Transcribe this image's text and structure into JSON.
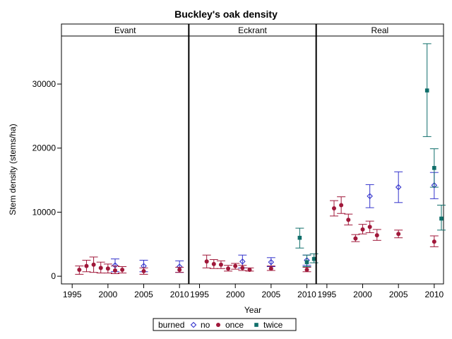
{
  "chart_data": {
    "type": "scatter",
    "title": "Buckley's oak density",
    "xlabel": "Year",
    "ylabel": "Stem density (stems/ha)",
    "panels": [
      "Evant",
      "Eckrant",
      "Real"
    ],
    "xlim": [
      1993.5,
      2011.3
    ],
    "ylim": [
      -1200,
      37500
    ],
    "xticks": [
      1995,
      2000,
      2005,
      2010
    ],
    "yticks": [
      0,
      10000,
      20000,
      30000
    ],
    "xtick_labels": [
      "1995",
      "2000",
      "2005",
      "2010"
    ],
    "ytick_labels": [
      "0",
      "10000",
      "20000",
      "30000"
    ],
    "legend": {
      "title": "burned",
      "placement": "bottom",
      "entries": [
        {
          "label": "no",
          "marker": "diamond-open",
          "color": "#3333cc"
        },
        {
          "label": "once",
          "marker": "circle-filled",
          "color": "#a0183a"
        },
        {
          "label": "twice",
          "marker": "square-filled",
          "color": "#0f6e6a"
        }
      ]
    },
    "series": [
      {
        "name": "no",
        "panels": {
          "Evant": [
            {
              "x": 2001,
              "y": 1700,
              "lo": 700,
              "hi": 2700
            },
            {
              "x": 2005,
              "y": 1600,
              "lo": 700,
              "hi": 2500
            },
            {
              "x": 2010,
              "y": 1500,
              "lo": 600,
              "hi": 2400
            }
          ],
          "Eckrant": [
            {
              "x": 2001,
              "y": 2300,
              "lo": 1300,
              "hi": 3300
            },
            {
              "x": 2005,
              "y": 2200,
              "lo": 1500,
              "hi": 2900
            },
            {
              "x": 2010,
              "y": 2500,
              "lo": 1700,
              "hi": 3300
            }
          ],
          "Real": [
            {
              "x": 2001,
              "y": 12500,
              "lo": 10700,
              "hi": 14300
            },
            {
              "x": 2005,
              "y": 13900,
              "lo": 11500,
              "hi": 16300
            },
            {
              "x": 2010,
              "y": 14200,
              "lo": 12100,
              "hi": 16200
            }
          ]
        }
      },
      {
        "name": "once",
        "panels": {
          "Evant": [
            {
              "x": 1996,
              "y": 1000,
              "lo": 300,
              "hi": 1600
            },
            {
              "x": 1997,
              "y": 1600,
              "lo": 700,
              "hi": 2500
            },
            {
              "x": 1998,
              "y": 1800,
              "lo": 600,
              "hi": 3000
            },
            {
              "x": 1999,
              "y": 1300,
              "lo": 500,
              "hi": 2200
            },
            {
              "x": 2000,
              "y": 1200,
              "lo": 500,
              "hi": 1900
            },
            {
              "x": 2001,
              "y": 900,
              "lo": 400,
              "hi": 1600
            },
            {
              "x": 2002,
              "y": 1000,
              "lo": 500,
              "hi": 1500
            },
            {
              "x": 2005,
              "y": 800,
              "lo": 300,
              "hi": 1300
            },
            {
              "x": 2010,
              "y": 1000,
              "lo": 600,
              "hi": 1400
            }
          ],
          "Eckrant": [
            {
              "x": 1996,
              "y": 2300,
              "lo": 1300,
              "hi": 3300
            },
            {
              "x": 1997,
              "y": 1900,
              "lo": 1200,
              "hi": 2600
            },
            {
              "x": 1998,
              "y": 1800,
              "lo": 1200,
              "hi": 2400
            },
            {
              "x": 1999,
              "y": 1200,
              "lo": 800,
              "hi": 1700
            },
            {
              "x": 2000,
              "y": 1600,
              "lo": 1100,
              "hi": 2000
            },
            {
              "x": 2001,
              "y": 1300,
              "lo": 900,
              "hi": 1700
            },
            {
              "x": 2002,
              "y": 1000,
              "lo": 800,
              "hi": 1300
            },
            {
              "x": 2005,
              "y": 1200,
              "lo": 900,
              "hi": 1600
            },
            {
              "x": 2010,
              "y": 1000,
              "lo": 700,
              "hi": 1400
            }
          ],
          "Real": [
            {
              "x": 1996,
              "y": 10600,
              "lo": 9400,
              "hi": 11800
            },
            {
              "x": 1997,
              "y": 11100,
              "lo": 9800,
              "hi": 12400
            },
            {
              "x": 1998,
              "y": 8800,
              "lo": 8000,
              "hi": 9700
            },
            {
              "x": 1999,
              "y": 5900,
              "lo": 5400,
              "hi": 6500
            },
            {
              "x": 2000,
              "y": 7300,
              "lo": 6600,
              "hi": 8100
            },
            {
              "x": 2001,
              "y": 7700,
              "lo": 6800,
              "hi": 8600
            },
            {
              "x": 2002,
              "y": 6400,
              "lo": 5600,
              "hi": 7300
            },
            {
              "x": 2005,
              "y": 6600,
              "lo": 6000,
              "hi": 7200
            },
            {
              "x": 2010,
              "y": 5400,
              "lo": 4600,
              "hi": 6300
            }
          ]
        }
      },
      {
        "name": "twice",
        "panels": {
          "Evant": [],
          "Eckrant": [
            {
              "x": 2009,
              "y": 6000,
              "lo": 4400,
              "hi": 7500
            },
            {
              "x": 2010,
              "y": 2200,
              "lo": 1500,
              "hi": 3300
            },
            {
              "x": 2011,
              "y": 2700,
              "lo": 2100,
              "hi": 3500
            }
          ],
          "Real": [
            {
              "x": 2009,
              "y": 29000,
              "lo": 21800,
              "hi": 36300
            },
            {
              "x": 2010,
              "y": 16900,
              "lo": 13900,
              "hi": 19900
            },
            {
              "x": 2011,
              "y": 9000,
              "lo": 7200,
              "hi": 11100
            }
          ]
        }
      }
    ],
    "grid": false
  }
}
